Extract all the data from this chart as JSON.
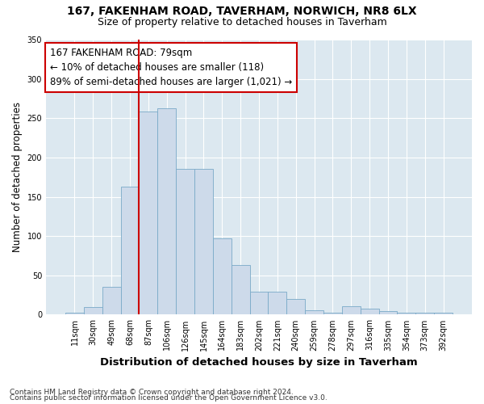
{
  "title1": "167, FAKENHAM ROAD, TAVERHAM, NORWICH, NR8 6LX",
  "title2": "Size of property relative to detached houses in Taverham",
  "xlabel": "Distribution of detached houses by size in Taverham",
  "ylabel": "Number of detached properties",
  "footnote1": "Contains HM Land Registry data © Crown copyright and database right 2024.",
  "footnote2": "Contains public sector information licensed under the Open Government Licence v3.0.",
  "bin_labels": [
    "11sqm",
    "30sqm",
    "49sqm",
    "68sqm",
    "87sqm",
    "106sqm",
    "126sqm",
    "145sqm",
    "164sqm",
    "183sqm",
    "202sqm",
    "221sqm",
    "240sqm",
    "259sqm",
    "278sqm",
    "297sqm",
    "316sqm",
    "335sqm",
    "354sqm",
    "373sqm",
    "392sqm"
  ],
  "bar_values": [
    2,
    10,
    35,
    163,
    258,
    263,
    185,
    185,
    97,
    63,
    29,
    29,
    20,
    6,
    3,
    11,
    8,
    5,
    3,
    2,
    2
  ],
  "bar_color": "#cddaea",
  "bar_edge_color": "#7aaac8",
  "vline_color": "#cc0000",
  "annotation_line1": "167 FAKENHAM ROAD: 79sqm",
  "annotation_line2": "← 10% of detached houses are smaller (118)",
  "annotation_line3": "89% of semi-detached houses are larger (1,021) →",
  "annotation_box_color": "#ffffff",
  "annotation_box_edge": "#cc0000",
  "ylim": [
    0,
    350
  ],
  "yticks": [
    0,
    50,
    100,
    150,
    200,
    250,
    300,
    350
  ],
  "bg_color": "#ffffff",
  "plot_bg_color": "#dce8f0",
  "grid_color": "#ffffff",
  "title1_fontsize": 10,
  "title2_fontsize": 9,
  "xlabel_fontsize": 9.5,
  "ylabel_fontsize": 8.5,
  "tick_fontsize": 7,
  "footnote_fontsize": 6.5,
  "annot_fontsize": 8.5
}
